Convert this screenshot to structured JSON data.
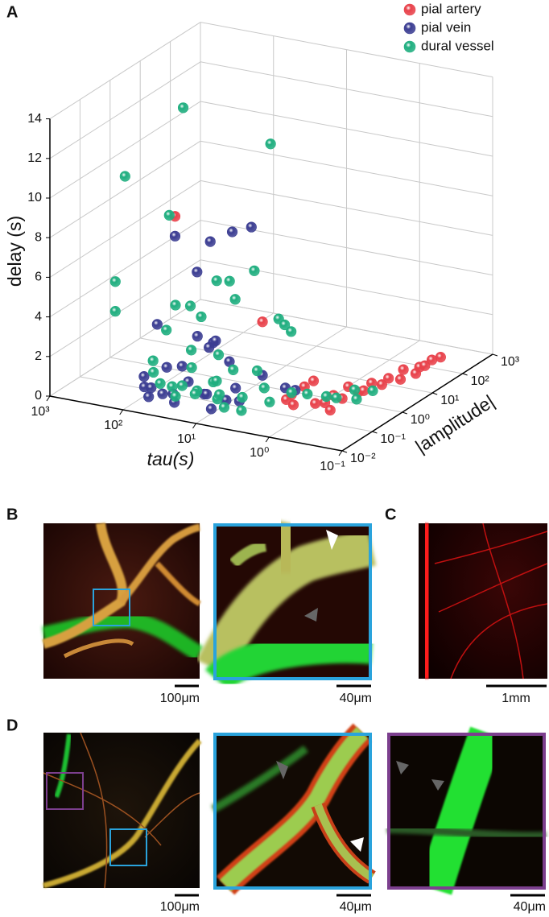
{
  "chart_data": {
    "type": "scatter3d",
    "x_label": "tau(s)",
    "y_label": "|amplitude|",
    "z_label": "delay (s)",
    "log_x": true,
    "log_y": true,
    "grid": true,
    "xlim": [
      1000,
      0.1
    ],
    "xticks": [
      {
        "value": 1000,
        "label": "10³"
      },
      {
        "value": 100,
        "label": "10²"
      },
      {
        "value": 10,
        "label": "10¹"
      },
      {
        "value": 1,
        "label": "10⁰"
      },
      {
        "value": 0.1,
        "label": "10⁻¹"
      }
    ],
    "ylim": [
      0.01,
      1000
    ],
    "yticks": [
      {
        "value": 0.01,
        "label": "10⁻²"
      },
      {
        "value": 0.1,
        "label": "10⁻¹"
      },
      {
        "value": 1,
        "label": "10⁰"
      },
      {
        "value": 10,
        "label": "10¹"
      },
      {
        "value": 100,
        "label": "10²"
      },
      {
        "value": 1000,
        "label": "10³"
      }
    ],
    "zlim": [
      0,
      14
    ],
    "zticks": [
      0,
      2,
      4,
      6,
      8,
      10,
      12,
      14
    ],
    "series": [
      {
        "name": "pial artery",
        "color": "#e8414a",
        "tau": [
          1.5,
          1.2,
          1,
          0.8,
          0.7,
          0.6,
          0.5,
          0.5,
          0.4,
          0.4,
          0.35,
          0.3,
          0.3,
          0.25,
          0.25,
          0.2,
          0.2,
          0.2,
          0.18,
          0.15,
          0.5,
          2,
          50,
          5,
          1
        ],
        "amplitude": [
          0.1,
          0.1,
          0.15,
          0.2,
          0.3,
          0.4,
          0.5,
          0.8,
          1,
          1.5,
          2,
          3,
          5,
          8,
          10,
          15,
          20,
          30,
          40,
          50,
          0.2,
          0.3,
          0.1,
          0.3,
          0.3
        ],
        "delay": [
          0.8,
          0.6,
          1.4,
          0.5,
          0.4,
          0.7,
          0.5,
          0.9,
          0.6,
          0.5,
          0.8,
          0.6,
          0.7,
          0.5,
          0.9,
          0.6,
          0.8,
          0.7,
          0.9,
          1.0,
          0.3,
          0.5,
          9.0,
          3.9,
          1.4
        ]
      },
      {
        "name": "pial vein",
        "color": "#3b3d92",
        "tau": [
          50,
          20,
          10,
          6,
          25,
          80,
          30,
          20,
          15,
          25,
          12,
          40,
          100,
          90,
          70,
          80,
          60,
          40,
          30,
          20,
          15,
          10,
          8,
          6,
          5,
          70,
          3,
          2,
          35,
          12
        ],
        "amplitude": [
          0.1,
          0.16,
          0.16,
          0.2,
          0.1,
          0.08,
          0.16,
          0.2,
          0.12,
          0.25,
          0.2,
          0.1,
          0.05,
          0.04,
          0.03,
          0.05,
          0.06,
          0.05,
          0.08,
          0.1,
          0.06,
          0.1,
          0.12,
          0.08,
          0.3,
          0.12,
          0.5,
          0.4,
          0.04,
          0.05
        ],
        "delay": [
          8.0,
          7.8,
          8.5,
          8.8,
          6.4,
          3.5,
          2.9,
          2.6,
          3.0,
          2.2,
          1.8,
          1.5,
          1.0,
          0.6,
          0.3,
          0.5,
          0.2,
          0.4,
          0.9,
          0.3,
          0.6,
          0.2,
          0.8,
          0.4,
          1.2,
          1.2,
          0.5,
          0.6,
          0.1,
          0.0
        ]
      },
      {
        "name": "dural vessel",
        "color": "#1fae7f",
        "tau": [
          100,
          200,
          10,
          200,
          200,
          60,
          15,
          10,
          6,
          10,
          40,
          25,
          20,
          3,
          2.8,
          2.5,
          60,
          30,
          15,
          8,
          5,
          80,
          60,
          50,
          40,
          30,
          25,
          20,
          15,
          12,
          10,
          8,
          6,
          5,
          4,
          3,
          2,
          1.5,
          1,
          0.8,
          0.6,
          0.5,
          0.4,
          100,
          35,
          18
        ],
        "amplitude": [
          1,
          0.063,
          3,
          0.03,
          0.03,
          0.1,
          0.13,
          0.13,
          0.25,
          0.2,
          0.06,
          0.06,
          0.08,
          0.3,
          0.4,
          0.5,
          0.08,
          0.1,
          0.15,
          0.1,
          0.2,
          0.06,
          0.05,
          0.08,
          0.06,
          0.05,
          0.1,
          0.05,
          0.1,
          0.08,
          0.06,
          0.05,
          0.1,
          0.06,
          0.2,
          0.15,
          0.3,
          0.5,
          0.8,
          1,
          2,
          1.5,
          3,
          0.1,
          0.15,
          0.2
        ],
        "delay": [
          13.3,
          10.8,
          11.7,
          5.8,
          4.3,
          9.0,
          6.0,
          6.1,
          6.5,
          5.0,
          4.8,
          4.9,
          4.3,
          4.2,
          3.8,
          3.4,
          3.3,
          2.4,
          2.2,
          1.8,
          1.6,
          1.2,
          0.8,
          0.5,
          0.2,
          0.9,
          0.4,
          0.6,
          1.0,
          0.3,
          0.7,
          0.2,
          0.5,
          0.1,
          0.8,
          0.3,
          0.6,
          0.4,
          0.2,
          0.1,
          0.3,
          0.0,
          0.2,
          1.5,
          1.3,
          0.7
        ]
      }
    ]
  },
  "panel_labels": [
    "A",
    "B",
    "C",
    "D"
  ],
  "scale_bar_labels": [
    "100μm",
    "40μm",
    "1mm",
    "100μm",
    "40μm",
    "40μm"
  ]
}
